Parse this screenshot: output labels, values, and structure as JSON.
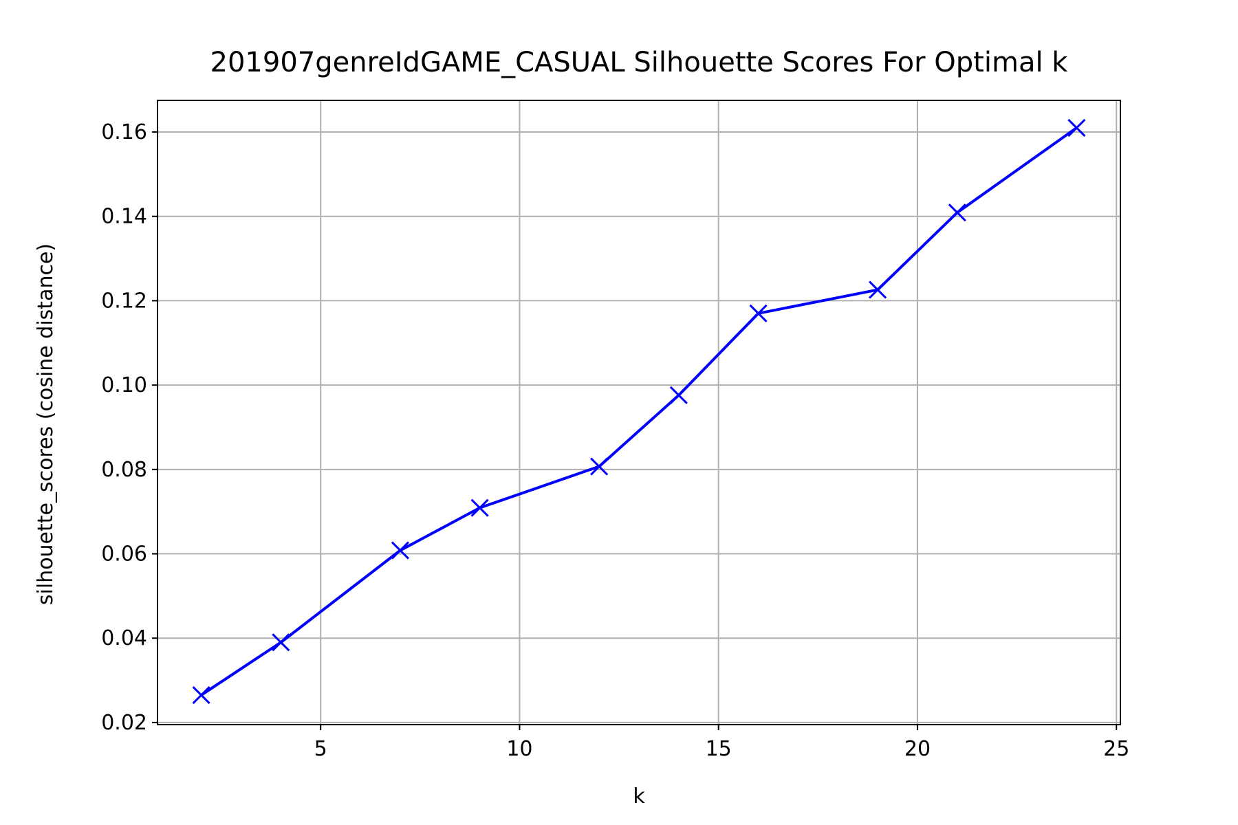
{
  "chart_data": {
    "type": "line",
    "title": "201907genreIdGAME_CASUAL Silhouette Scores For Optimal k",
    "xlabel": "k",
    "ylabel": "silhouette_scores (cosine distance)",
    "xlim": [
      0.9,
      25.1
    ],
    "ylim": [
      0.0195,
      0.1675
    ],
    "xticks": [
      5,
      10,
      15,
      20,
      25
    ],
    "yticks": [
      0.02,
      0.04,
      0.06,
      0.08,
      0.1,
      0.12,
      0.14,
      0.16
    ],
    "xtick_labels": [
      "5",
      "10",
      "15",
      "20",
      "25"
    ],
    "ytick_labels": [
      "0.02",
      "0.04",
      "0.06",
      "0.08",
      "0.10",
      "0.12",
      "0.14",
      "0.16"
    ],
    "grid": true,
    "series": [
      {
        "x": [
          2,
          4,
          7,
          9,
          12,
          14,
          16,
          19,
          21,
          24
        ],
        "y": [
          0.0265,
          0.039,
          0.0608,
          0.0709,
          0.0807,
          0.0976,
          0.117,
          0.1226,
          0.1409,
          0.161
        ],
        "color": "#0000ff",
        "marker": "x"
      }
    ]
  }
}
